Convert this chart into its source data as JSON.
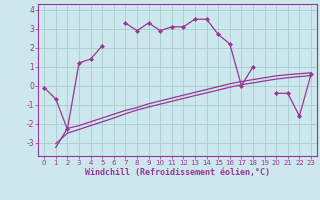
{
  "xlabel": "Windchill (Refroidissement éolien,°C)",
  "background_color": "#cde8ec",
  "line_color": "#993399",
  "grid_color": "#aacccc",
  "x_data": [
    0,
    1,
    2,
    3,
    4,
    5,
    6,
    7,
    8,
    9,
    10,
    11,
    12,
    13,
    14,
    15,
    16,
    17,
    18,
    19,
    20,
    21,
    22,
    23
  ],
  "y_main": [
    -0.1,
    -0.7,
    -2.3,
    1.2,
    1.4,
    2.1,
    null,
    3.3,
    2.9,
    3.3,
    2.9,
    3.1,
    3.1,
    3.5,
    3.5,
    2.7,
    2.2,
    0.0,
    1.0,
    null,
    -0.4,
    -0.4,
    -1.6,
    0.6
  ],
  "x_line": [
    1,
    2,
    3,
    4,
    5,
    6,
    7,
    8,
    9,
    10,
    11,
    12,
    13,
    14,
    15,
    16,
    17,
    18,
    19,
    20,
    21,
    22,
    23
  ],
  "y_line1": [
    -3.25,
    -2.25,
    -2.1,
    -1.9,
    -1.7,
    -1.5,
    -1.3,
    -1.15,
    -0.95,
    -0.8,
    -0.65,
    -0.5,
    -0.35,
    -0.2,
    -0.05,
    0.1,
    0.22,
    0.32,
    0.42,
    0.52,
    0.58,
    0.63,
    0.68
  ],
  "y_line2": [
    -3.05,
    -2.5,
    -2.3,
    -2.1,
    -1.9,
    -1.7,
    -1.48,
    -1.28,
    -1.12,
    -0.97,
    -0.82,
    -0.67,
    -0.52,
    -0.38,
    -0.23,
    -0.08,
    0.05,
    0.15,
    0.25,
    0.35,
    0.42,
    0.48,
    0.53
  ],
  "xlim": [
    -0.5,
    23.5
  ],
  "ylim": [
    -3.7,
    4.3
  ],
  "yticks": [
    -3,
    -2,
    -1,
    0,
    1,
    2,
    3,
    4
  ],
  "xticks": [
    0,
    1,
    2,
    3,
    4,
    5,
    6,
    7,
    8,
    9,
    10,
    11,
    12,
    13,
    14,
    15,
    16,
    17,
    18,
    19,
    20,
    21,
    22,
    23
  ],
  "tick_fontsize": 5.5,
  "xlabel_fontsize": 6.0
}
